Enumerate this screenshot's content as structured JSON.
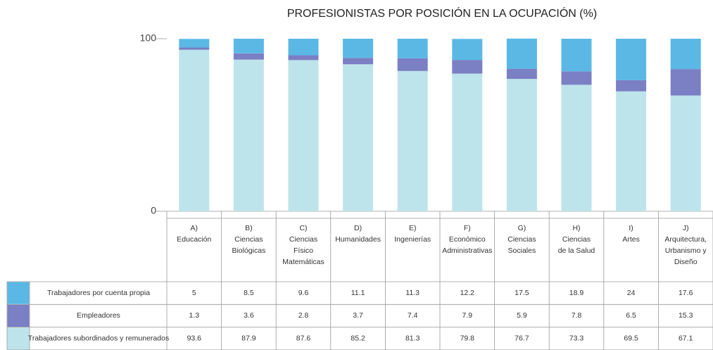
{
  "chart_data": {
    "type": "stacked_bar",
    "title": "PROFESIONISTAS POR POSICIÓN EN LA OCUPACIÓN  (%)",
    "categories": [
      [
        "A)",
        "Educación"
      ],
      [
        "B)",
        "Ciencias",
        "Biológicas"
      ],
      [
        "C)",
        "Ciencias",
        "Físico",
        "Matemáticas"
      ],
      [
        "D)",
        "Humanidades"
      ],
      [
        "E)",
        "Ingenierías"
      ],
      [
        "F)",
        "Económico",
        "Administrativas"
      ],
      [
        "G)",
        "Ciencias",
        "Sociales"
      ],
      [
        "H)",
        "Ciencias",
        "de la Salud"
      ],
      [
        "I)",
        "Artes"
      ],
      [
        "J)",
        "Arquitectura,",
        "Urbanismo y",
        "Diseño"
      ]
    ],
    "series": [
      {
        "name": "Trabajadores por cuenta propia",
        "color": "#5bb8e4",
        "values": [
          5,
          8.5,
          9.6,
          11.1,
          11.3,
          12.2,
          17.5,
          18.9,
          24,
          17.6
        ]
      },
      {
        "name": "Empleadores",
        "color": "#7b7fc4",
        "values": [
          1.3,
          3.6,
          2.8,
          3.7,
          7.4,
          7.9,
          5.9,
          7.8,
          6.5,
          15.3
        ]
      },
      {
        "name": "Trabajadores subordinados y remunerados",
        "color": "#bde4ea",
        "values": [
          93.6,
          87.9,
          87.6,
          85.2,
          81.3,
          79.8,
          76.7,
          73.3,
          69.5,
          67.1
        ]
      }
    ],
    "ylim": [
      0,
      100
    ],
    "yticks": [
      0,
      100
    ]
  }
}
